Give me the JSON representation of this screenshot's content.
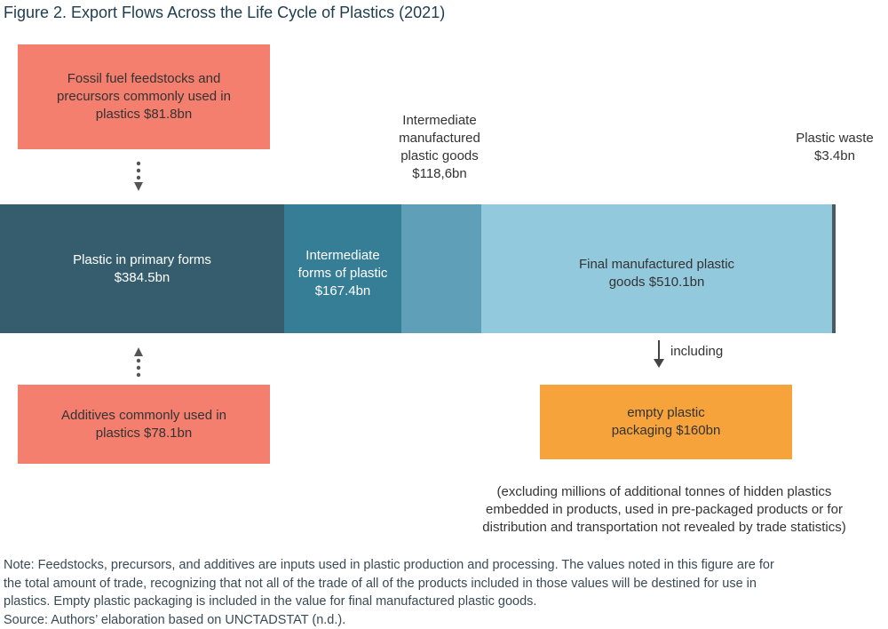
{
  "title": "Figure 2. Export Flows Across the Life Cycle of Plastics (2021)",
  "feedstocks": {
    "lines": [
      "Fossil fuel feedstocks and",
      "precursors commonly used in",
      "plastics $81.8bn"
    ]
  },
  "intermediate_goods": {
    "lines": [
      "Intermediate",
      "manufactured",
      "plastic goods",
      "$118,6bn"
    ]
  },
  "plastic_waste": {
    "lines": [
      "Plastic waste",
      "$3.4bn"
    ]
  },
  "primary_forms": {
    "lines": [
      "Plastic in primary forms",
      "$384.5bn"
    ]
  },
  "intermediate_forms": {
    "lines": [
      "Intermediate",
      "forms of plastic",
      "$167.4bn"
    ]
  },
  "final_goods": {
    "lines": [
      "Final manufactured plastic",
      "goods $510.1bn"
    ]
  },
  "including": "including",
  "additives": {
    "lines": [
      "Additives commonly used in",
      "plastics $78.1bn"
    ]
  },
  "packaging": {
    "lines": [
      "empty plastic",
      "packaging $160bn"
    ]
  },
  "packaging_note": {
    "lines": [
      "(excluding millions of additional tonnes of hidden plastics",
      "embedded in products, used in pre-packaged products or for",
      "distribution and transportation not revealed by trade statistics)"
    ]
  },
  "note": {
    "lines": [
      "Note: Feedstocks, precursors, and additives are inputs used in plastic production and processing. The values noted in this figure are for",
      "the total amount of trade, recognizing that not all of the trade of all of the products included in those values will be destined for use in",
      "plastics. Empty plastic packaging is included in the value for final manufactured plastic goods.",
      "Source: Authors’ elaboration based on UNCTADSTAT (n.d.)."
    ]
  }
}
